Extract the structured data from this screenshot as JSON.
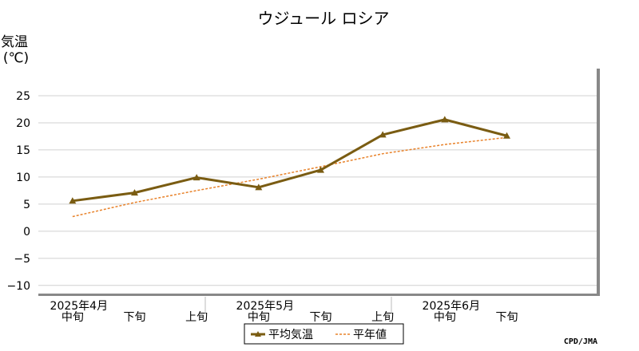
{
  "chart_data": {
    "type": "line",
    "title": "ウジュール ロシア",
    "ylabel_line1": "気温",
    "ylabel_line2": "(℃)",
    "ylim": [
      -10,
      25
    ],
    "yticks": [
      25,
      20,
      15,
      10,
      5,
      0,
      -5,
      -10
    ],
    "grid": true,
    "legend_position": "bottom-center",
    "categories": [
      "中旬",
      "下旬",
      "上旬",
      "中旬",
      "下旬",
      "上旬",
      "中旬",
      "下旬"
    ],
    "month_labels": [
      {
        "label": "2025年4月",
        "index": 0
      },
      {
        "label": "2025年5月",
        "index": 3
      },
      {
        "label": "2025年6月",
        "index": 6
      }
    ],
    "series": [
      {
        "name": "平均気温",
        "color": "#7a5c12",
        "style": "solid-triangle-markers",
        "values": [
          5.6,
          7.1,
          9.9,
          8.1,
          11.3,
          17.8,
          20.6,
          17.6
        ]
      },
      {
        "name": "平年値",
        "color": "#e8822a",
        "style": "dashed",
        "values": [
          2.7,
          5.3,
          7.5,
          9.6,
          11.9,
          14.3,
          16.0,
          17.3
        ]
      }
    ],
    "credit": "CPD/JMA"
  }
}
